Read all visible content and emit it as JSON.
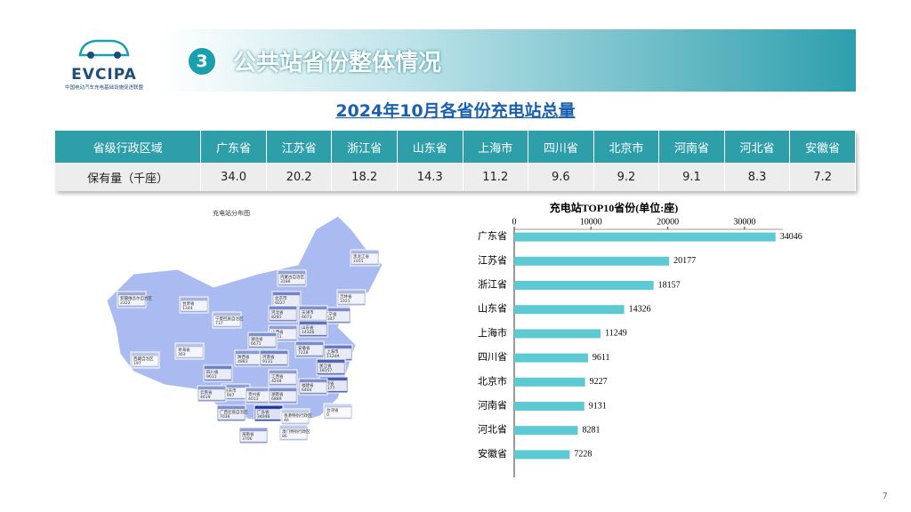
{
  "header": {
    "logo": "EVCIPA",
    "logo_subtitle": "中国电动汽车充电基础设施促进联盟",
    "section_number": "3",
    "title": "公共站省份整体情况"
  },
  "table": {
    "title": "2024年10月各省份充电站总量",
    "header": [
      "省级行政区域",
      "广东省",
      "江苏省",
      "浙江省",
      "山东省",
      "上海市",
      "四川省",
      "北京市",
      "河南省",
      "河北省",
      "安徽省"
    ],
    "rows": [
      [
        "保有量（千座）",
        "34.0",
        "20.2",
        "18.2",
        "14.3",
        "11.2",
        "9.6",
        "9.2",
        "9.1",
        "8.3",
        "7.2"
      ]
    ]
  },
  "map": {
    "title": "充电站分布图",
    "regions": [
      {
        "name": "黑龙江省",
        "value": 1055
      },
      {
        "name": "吉林省",
        "value": 1021
      },
      {
        "name": "辽宁省",
        "value": 7347
      },
      {
        "name": "内蒙古自治区",
        "value": 3186
      },
      {
        "name": "新疆维吾尔自治区",
        "value": 2322
      },
      {
        "name": "甘肃省",
        "value": 1344
      },
      {
        "name": "宁夏回族自治区",
        "value": 737
      },
      {
        "name": "青海省",
        "value": 363
      },
      {
        "name": "西藏自治区",
        "value": 197
      },
      {
        "name": "北京市",
        "value": 9227
      },
      {
        "name": "天津市",
        "value": 6673
      },
      {
        "name": "河北省",
        "value": 8281
      },
      {
        "name": "山西省",
        "value": 4051
      },
      {
        "name": "山东省",
        "value": 14326
      },
      {
        "name": "陕西省",
        "value": 4883
      },
      {
        "name": "河南省",
        "value": 9131
      },
      {
        "name": "湖北省",
        "value": 6671
      },
      {
        "name": "安徽省",
        "value": 7228
      },
      {
        "name": "江苏省",
        "value": 20177
      },
      {
        "name": "上海市",
        "value": 11249
      },
      {
        "name": "浙江省",
        "value": 18157
      },
      {
        "name": "四川省",
        "value": 9611
      },
      {
        "name": "重庆市",
        "value": 3907
      },
      {
        "name": "贵州省",
        "value": 4013
      },
      {
        "name": "云南省",
        "value": 4619
      },
      {
        "name": "湖南省",
        "value": 6889
      },
      {
        "name": "江西省",
        "value": 4248
      },
      {
        "name": "福建省",
        "value": 6404
      },
      {
        "name": "广东省",
        "value": 34046
      },
      {
        "name": "广西壮族自治区",
        "value": 7036
      },
      {
        "name": "海南省",
        "value": 3706
      },
      {
        "name": "台湾省",
        "value": 0
      },
      {
        "name": "香港特别行政区",
        "value": 46
      },
      {
        "name": "澳门特别行政区",
        "value": 86
      }
    ]
  },
  "chart_data": {
    "type": "bar",
    "orientation": "horizontal",
    "title": "充电站TOP10省份(单位:座)",
    "categories": [
      "广东省",
      "江苏省",
      "浙江省",
      "山东省",
      "上海市",
      "四川省",
      "北京市",
      "河南省",
      "河北省",
      "安徽省"
    ],
    "values": [
      34046,
      20177,
      18157,
      14326,
      11249,
      9611,
      9227,
      9131,
      8281,
      7228
    ],
    "color": "#5cc9d3",
    "xlim": [
      0,
      35000
    ],
    "xticks": [
      0,
      10000,
      20000,
      30000
    ]
  },
  "page_number": "7"
}
